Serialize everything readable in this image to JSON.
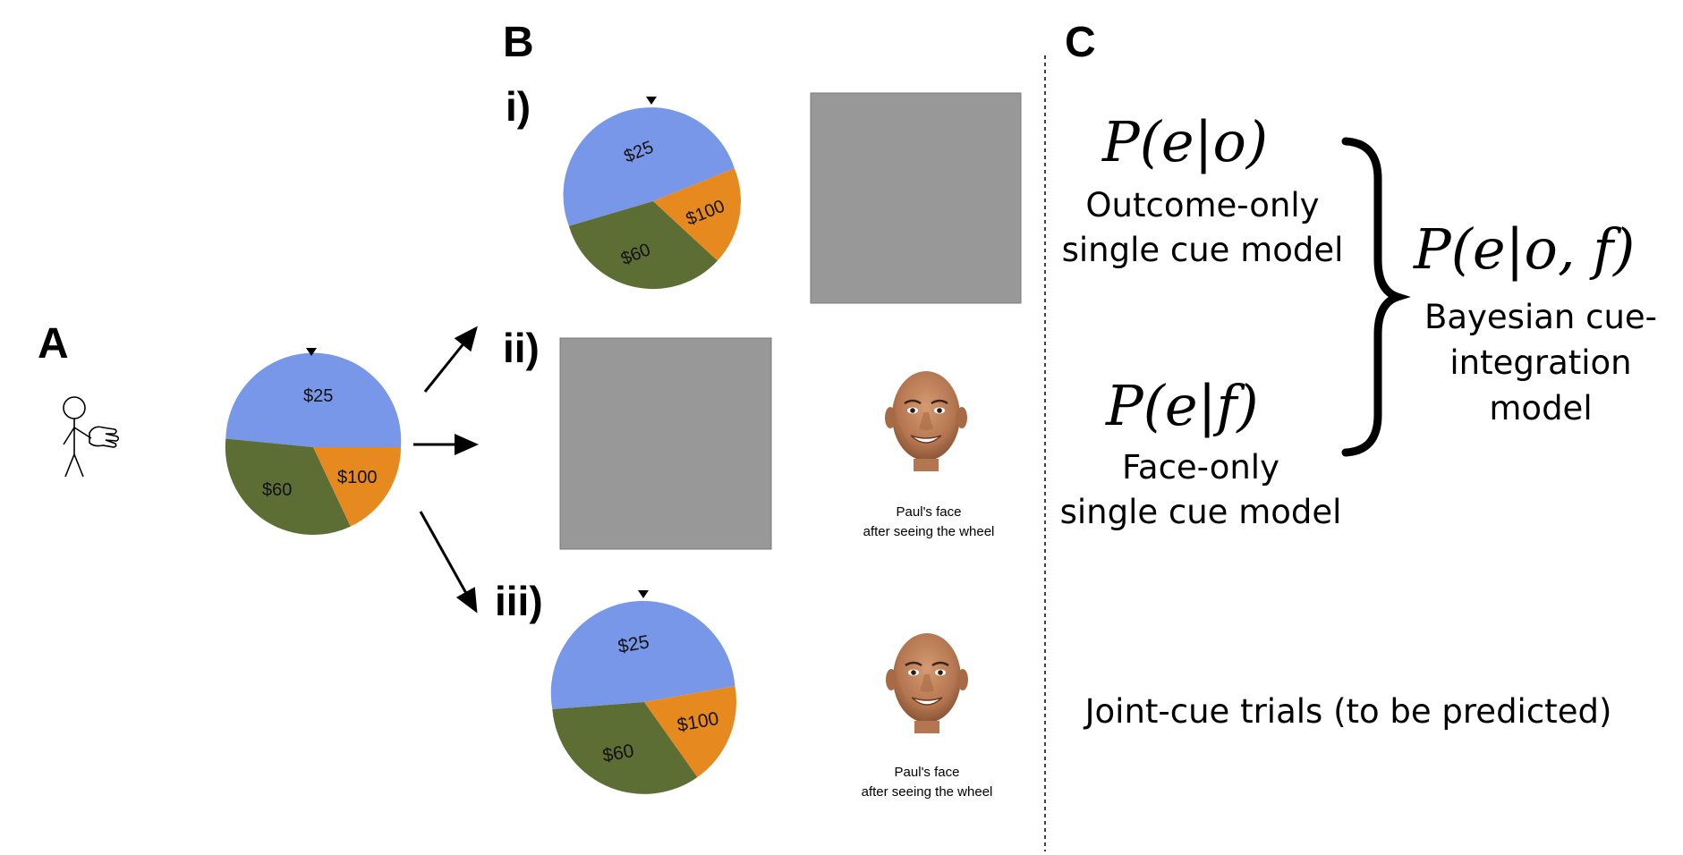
{
  "panels": {
    "A": "A",
    "B": "B",
    "C": "C"
  },
  "sub_panels": {
    "i": "i)",
    "ii": "ii)",
    "iii": "iii)"
  },
  "wheel": {
    "labels": [
      "$25",
      "$60",
      "$100"
    ],
    "colors": {
      "$25": "#7897E8",
      "$60": "#5D6E35",
      "$100": "#E68A1F"
    }
  },
  "face_caption": {
    "line1": "Paul's face",
    "line2": "after seeing the wheel"
  },
  "placeholder_color": "#989898",
  "models": {
    "outcome_only": {
      "formula": "P(e|o)",
      "line1": "Outcome-only",
      "line2": "single cue model"
    },
    "face_only": {
      "formula": "P(e|f)",
      "line1": "Face-only",
      "line2": "single cue model"
    },
    "bayesian": {
      "formula": "P(e|o, f)",
      "line1": "Bayesian cue-",
      "line2": "integration",
      "line3": "model"
    }
  },
  "joint_caption": "Joint-cue trials (to be predicted)"
}
